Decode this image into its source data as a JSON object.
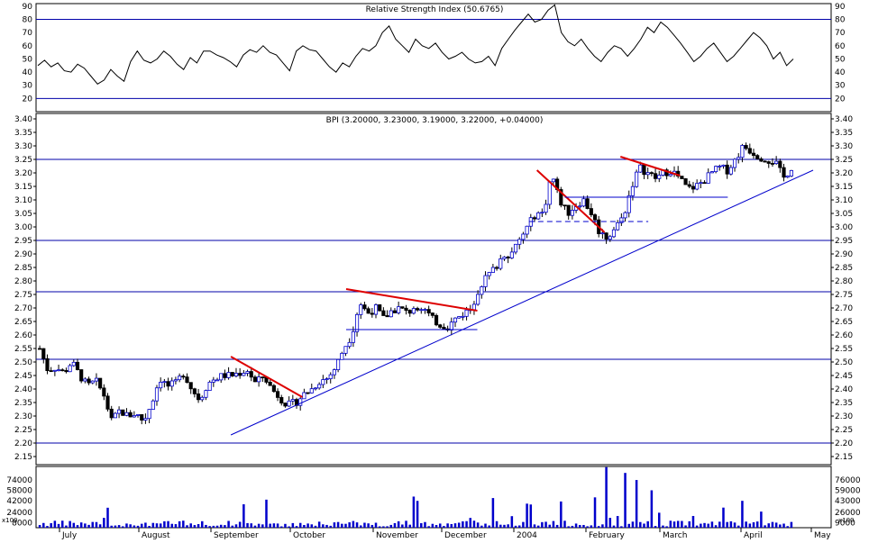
{
  "chart_data": {
    "type": "candlestick",
    "title": "BPI (3.20000, 3.23000, 3.19000, 3.22000, +0.04000)",
    "x_month_labels": [
      "July",
      "August",
      "September",
      "October",
      "November",
      "December",
      "2004",
      "February",
      "March",
      "April",
      "May"
    ],
    "price_axis": {
      "ylim": [
        2.12,
        3.42
      ],
      "ticks": [
        "2.15",
        "2.20",
        "2.25",
        "2.30",
        "2.35",
        "2.40",
        "2.45",
        "2.50",
        "2.55",
        "2.60",
        "2.65",
        "2.70",
        "2.75",
        "2.80",
        "2.85",
        "2.90",
        "2.95",
        "3.00",
        "3.05",
        "3.10",
        "3.15",
        "3.20",
        "3.25",
        "3.30",
        "3.35",
        "3.40"
      ],
      "horizontal_levels": [
        2.2,
        2.51,
        2.76,
        2.95,
        3.25
      ]
    },
    "rsi_panel": {
      "title": "Relative Strength Index (50.6765)",
      "ylim": [
        10,
        92
      ],
      "ticks": [
        "20",
        "30",
        "40",
        "50",
        "60",
        "70",
        "80",
        "90"
      ],
      "overbought": 80,
      "oversold": 20,
      "values": [
        45,
        49,
        44,
        47,
        41,
        40,
        46,
        43,
        37,
        31,
        34,
        42,
        37,
        33,
        48,
        56,
        49,
        47,
        50,
        56,
        52,
        46,
        42,
        51,
        47,
        56,
        56,
        53,
        51,
        48,
        44,
        53,
        57,
        55,
        60,
        55,
        53,
        47,
        41,
        56,
        60,
        57,
        56,
        50,
        44,
        40,
        47,
        44,
        52,
        58,
        56,
        60,
        70,
        75,
        65,
        60,
        55,
        65,
        60,
        58,
        62,
        55,
        50,
        52,
        55,
        50,
        47,
        48,
        52,
        45,
        58,
        65,
        72,
        78,
        84,
        78,
        80,
        87,
        91,
        70,
        63,
        60,
        65,
        58,
        52,
        48,
        55,
        60,
        58,
        52,
        58,
        65,
        74,
        70,
        78,
        74,
        68,
        62,
        55,
        48,
        52,
        58,
        62,
        55,
        48,
        52,
        58,
        64,
        70,
        66,
        60,
        50,
        55,
        45,
        50
      ]
    },
    "volume_panel": {
      "ticks_left": [
        "74000",
        "58000",
        "42000",
        "24000",
        "8000"
      ],
      "ticks_right": [
        "76000",
        "59000",
        "43000",
        "26000",
        "9000"
      ],
      "unit_label": "x100",
      "ylim": [
        0,
        95000
      ]
    },
    "annotations": {
      "uptrend_line": {
        "from": [
          0.245,
          2.23
        ],
        "to": [
          1.0,
          3.21
        ]
      },
      "red_downtrend_lines": [
        {
          "from": [
            0.245,
            2.52
          ],
          "to": [
            0.335,
            2.37
          ]
        },
        {
          "from": [
            0.39,
            2.77
          ],
          "to": [
            0.555,
            2.69
          ]
        },
        {
          "from": [
            0.63,
            3.21
          ],
          "to": [
            0.715,
            2.98
          ]
        },
        {
          "from": [
            0.735,
            3.26
          ],
          "to": [
            0.81,
            3.19
          ]
        }
      ],
      "blue_support_lines": [
        {
          "from": [
            0.39,
            2.62
          ],
          "to": [
            0.555,
            2.62
          ]
        },
        {
          "from": [
            0.665,
            3.11
          ],
          "to": [
            0.87,
            3.11
          ]
        }
      ],
      "dashed_line": {
        "from": [
          0.62,
          3.02
        ],
        "to": [
          0.77,
          3.02
        ]
      }
    },
    "ohlc_anchor_closes": [
      2.55,
      2.47,
      2.48,
      2.46,
      2.5,
      2.45,
      2.41,
      2.43,
      2.38,
      2.28,
      2.32,
      2.3,
      2.31,
      2.28,
      2.35,
      2.44,
      2.41,
      2.42,
      2.46,
      2.4,
      2.36,
      2.42,
      2.44,
      2.45,
      2.45,
      2.46,
      2.47,
      2.42,
      2.45,
      2.4,
      2.37,
      2.34,
      2.35,
      2.38,
      2.4,
      2.43,
      2.44,
      2.48,
      2.55,
      2.6,
      2.72,
      2.68,
      2.7,
      2.66,
      2.69,
      2.7,
      2.68,
      2.71,
      2.7,
      2.66,
      2.64,
      2.63,
      2.66,
      2.68,
      2.7,
      2.78,
      2.82,
      2.85,
      2.9,
      2.9,
      2.95,
      3.0,
      3.05,
      3.05,
      3.2,
      3.1,
      3.05,
      3.08,
      3.1,
      3.05,
      2.98,
      2.96,
      3.0,
      3.04,
      3.15,
      3.22,
      3.2,
      3.18,
      3.2,
      3.21,
      3.18,
      3.14,
      3.15,
      3.17,
      3.2,
      3.22,
      3.21,
      3.25,
      3.3,
      3.28,
      3.26,
      3.25,
      3.24,
      3.18,
      3.22
    ]
  }
}
